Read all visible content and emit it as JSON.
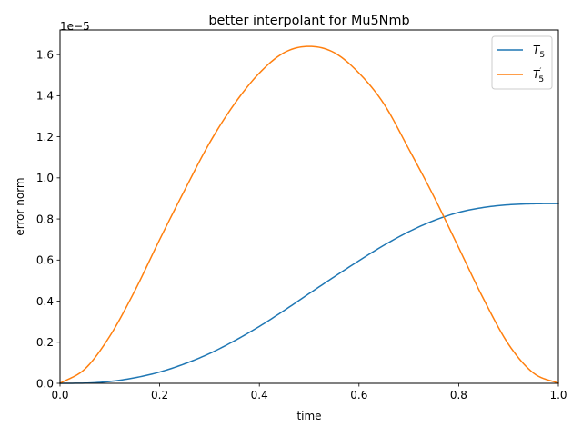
{
  "chart_data": {
    "type": "line",
    "title": "better interpolant for Mu5Nmb",
    "xlabel": "time",
    "ylabel": "error norm",
    "y_offset_label": "1e−5",
    "xlim": [
      0.0,
      1.0
    ],
    "ylim": [
      0.0,
      1.72
    ],
    "y_scale_note": "values ×1e−5",
    "x_ticks": [
      "0.0",
      "0.2",
      "0.4",
      "0.6",
      "0.8",
      "1.0"
    ],
    "y_ticks": [
      "0.0",
      "0.2",
      "0.4",
      "0.6",
      "0.8",
      "1.0",
      "1.2",
      "1.4",
      "1.6"
    ],
    "legend_position": "top-right",
    "grid": false,
    "series": [
      {
        "name": "T_5",
        "legend_main": "T",
        "legend_sub": "5",
        "legend_sup": "",
        "color": "#1f77b4",
        "x": [
          0.0,
          0.05,
          0.1,
          0.15,
          0.2,
          0.25,
          0.3,
          0.35,
          0.4,
          0.45,
          0.5,
          0.55,
          0.6,
          0.65,
          0.7,
          0.75,
          0.8,
          0.85,
          0.9,
          0.95,
          1.0
        ],
        "y": [
          0.0,
          0.001,
          0.009,
          0.027,
          0.055,
          0.095,
          0.145,
          0.207,
          0.277,
          0.355,
          0.437,
          0.518,
          0.597,
          0.672,
          0.738,
          0.792,
          0.832,
          0.856,
          0.869,
          0.874,
          0.875
        ]
      },
      {
        "name": "T_5'",
        "legend_main": "T",
        "legend_sub": "5",
        "legend_sup": "′",
        "color": "#ff7f0e",
        "x": [
          0.0,
          0.05,
          0.1,
          0.15,
          0.2,
          0.25,
          0.3,
          0.35,
          0.4,
          0.45,
          0.5,
          0.55,
          0.6,
          0.65,
          0.7,
          0.75,
          0.8,
          0.85,
          0.9,
          0.95,
          1.0
        ],
        "y": [
          0.0,
          0.07,
          0.23,
          0.45,
          0.7,
          0.94,
          1.17,
          1.36,
          1.51,
          1.61,
          1.64,
          1.61,
          1.51,
          1.36,
          1.14,
          0.91,
          0.66,
          0.41,
          0.19,
          0.05,
          0.0
        ]
      }
    ]
  }
}
